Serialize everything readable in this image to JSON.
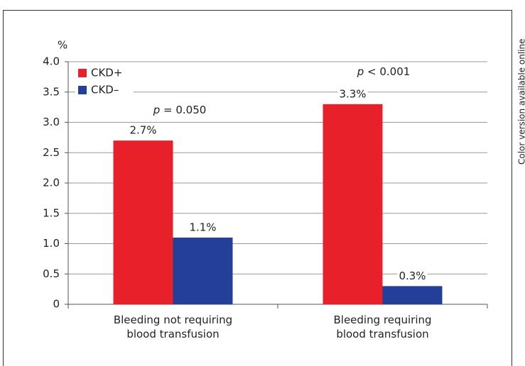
{
  "chart_data": {
    "type": "bar",
    "y_label": "%",
    "categories": [
      "Bleeding not requiring\nblood transfusion",
      "Bleeding requiring\nblood transfusion"
    ],
    "series": [
      {
        "name": "CKD+",
        "color": "#e8202a",
        "values": [
          2.7,
          3.3
        ],
        "value_labels": [
          "2.7%",
          "3.3%"
        ]
      },
      {
        "name": "CKD–",
        "color": "#233f99",
        "values": [
          1.1,
          0.3
        ],
        "value_labels": [
          "1.1%",
          "0.3%"
        ]
      }
    ],
    "annotations": [
      "p = 0.050",
      "p < 0.001"
    ],
    "ylim": [
      0,
      4
    ],
    "yticks": [
      0,
      0.5,
      {
        "value": 1,
        "label": "1.0"
      },
      1.5,
      {
        "value": 2,
        "label": "2.0"
      },
      2.5,
      {
        "value": 3,
        "label": "3.0"
      },
      3.5,
      {
        "value": 4,
        "label": "4.0"
      }
    ],
    "grid": true,
    "legend": "upper-left",
    "side_note": "Color version available online"
  }
}
